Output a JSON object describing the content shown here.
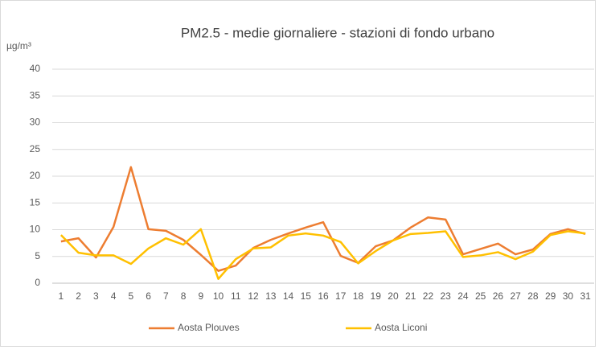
{
  "chart_data": {
    "type": "line",
    "title": "PM2.5 - medie giornaliere - stazioni di fondo urbano",
    "y_label": "µg/m³",
    "categories": [
      "1",
      "2",
      "3",
      "4",
      "5",
      "6",
      "7",
      "8",
      "9",
      "10",
      "11",
      "12",
      "13",
      "14",
      "15",
      "16",
      "17",
      "18",
      "19",
      "20",
      "21",
      "22",
      "23",
      "24",
      "25",
      "26",
      "27",
      "28",
      "29",
      "30",
      "31"
    ],
    "series": [
      {
        "name": "Aosta Plouves",
        "color": "#ED7D31",
        "values": [
          7.8,
          8.4,
          4.8,
          10.5,
          21.7,
          10.1,
          9.8,
          8.1,
          5.3,
          2.3,
          3.3,
          6.6,
          8.1,
          9.3,
          10.4,
          11.4,
          5.1,
          3.8,
          6.9,
          8.0,
          10.4,
          12.3,
          11.9,
          5.4,
          6.4,
          7.4,
          5.4,
          6.3,
          9.2,
          10.1,
          9.2
        ]
      },
      {
        "name": "Aosta Liconi",
        "color": "#FFC000",
        "values": [
          9.0,
          5.7,
          5.2,
          5.2,
          3.6,
          6.5,
          8.4,
          7.2,
          10.1,
          0.8,
          4.5,
          6.5,
          6.7,
          8.9,
          9.3,
          8.9,
          7.7,
          3.7,
          6.0,
          8.0,
          9.2,
          9.4,
          9.7,
          4.9,
          5.2,
          5.8,
          4.5,
          5.9,
          9.0,
          9.7,
          9.3
        ]
      }
    ],
    "ylim": [
      0,
      40
    ],
    "yticks": [
      0,
      5,
      10,
      15,
      20,
      25,
      30,
      35,
      40
    ],
    "grid": true
  }
}
